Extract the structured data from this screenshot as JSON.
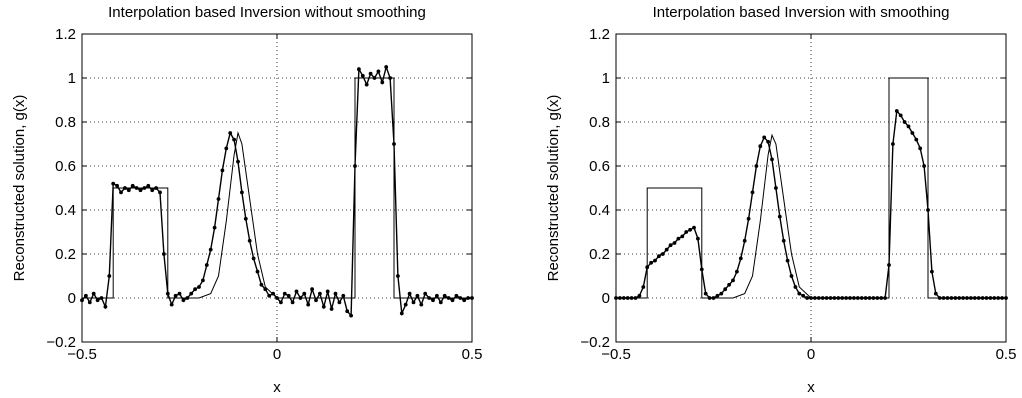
{
  "chart_data": [
    {
      "type": "line",
      "title": "Interpolation based Inversion without smoothing",
      "xlabel": "x",
      "ylabel": "Reconstructed solution, g(x)",
      "xlim": [
        -0.5,
        0.5
      ],
      "ylim": [
        -0.2,
        1.2
      ],
      "xticks": [
        "−0.5",
        "0",
        "0.5"
      ],
      "yticks": [
        "−0.2",
        "0",
        "0.2",
        "0.4",
        "0.6",
        "0.8",
        "1",
        "1.2"
      ],
      "xtick_values": [
        -0.5,
        0,
        0.5
      ],
      "ytick_values": [
        -0.2,
        0,
        0.2,
        0.4,
        0.6,
        0.8,
        1,
        1.2
      ],
      "grid": true,
      "exact": {
        "x": [
          -0.5,
          -0.42,
          -0.42,
          -0.28,
          -0.28,
          -0.2,
          -0.17,
          -0.15,
          -0.13,
          -0.11,
          -0.1,
          -0.09,
          -0.07,
          -0.05,
          -0.03,
          0.0,
          0.2,
          0.2,
          0.3,
          0.3,
          0.5
        ],
        "y": [
          0,
          0,
          0.5,
          0.5,
          0,
          0,
          0.02,
          0.1,
          0.35,
          0.65,
          0.75,
          0.7,
          0.45,
          0.2,
          0.05,
          0,
          0,
          1,
          1,
          0,
          0
        ]
      },
      "reconstruction": {
        "x": [
          -0.5,
          -0.49,
          -0.48,
          -0.47,
          -0.46,
          -0.45,
          -0.44,
          -0.43,
          -0.42,
          -0.41,
          -0.4,
          -0.39,
          -0.38,
          -0.37,
          -0.36,
          -0.35,
          -0.34,
          -0.33,
          -0.32,
          -0.31,
          -0.3,
          -0.29,
          -0.28,
          -0.27,
          -0.26,
          -0.25,
          -0.24,
          -0.23,
          -0.22,
          -0.21,
          -0.2,
          -0.19,
          -0.18,
          -0.17,
          -0.16,
          -0.15,
          -0.14,
          -0.13,
          -0.12,
          -0.11,
          -0.1,
          -0.09,
          -0.08,
          -0.07,
          -0.06,
          -0.05,
          -0.04,
          -0.03,
          -0.02,
          -0.01,
          0.0,
          0.01,
          0.02,
          0.03,
          0.04,
          0.05,
          0.06,
          0.07,
          0.08,
          0.09,
          0.1,
          0.11,
          0.12,
          0.13,
          0.14,
          0.15,
          0.16,
          0.17,
          0.18,
          0.19,
          0.2,
          0.21,
          0.22,
          0.23,
          0.24,
          0.25,
          0.26,
          0.27,
          0.28,
          0.29,
          0.3,
          0.31,
          0.32,
          0.33,
          0.34,
          0.35,
          0.36,
          0.37,
          0.38,
          0.39,
          0.4,
          0.41,
          0.42,
          0.43,
          0.44,
          0.45,
          0.46,
          0.47,
          0.48,
          0.49,
          0.5
        ],
        "y": [
          -0.01,
          0.01,
          -0.02,
          0.02,
          -0.01,
          0.0,
          -0.04,
          0.1,
          0.52,
          0.51,
          0.48,
          0.5,
          0.49,
          0.51,
          0.5,
          0.49,
          0.5,
          0.51,
          0.49,
          0.5,
          0.48,
          0.2,
          0.02,
          -0.03,
          0.01,
          0.02,
          -0.01,
          0.0,
          0.02,
          0.04,
          0.05,
          0.08,
          0.15,
          0.22,
          0.32,
          0.45,
          0.58,
          0.68,
          0.75,
          0.72,
          0.62,
          0.48,
          0.36,
          0.26,
          0.18,
          0.12,
          0.06,
          0.04,
          0.01,
          0.02,
          0.0,
          -0.02,
          0.02,
          0.01,
          -0.02,
          0.03,
          0.0,
          0.02,
          -0.03,
          0.04,
          -0.01,
          0.02,
          -0.04,
          0.03,
          -0.05,
          0.02,
          -0.02,
          0.01,
          -0.06,
          -0.08,
          0.6,
          1.04,
          1.01,
          0.97,
          1.02,
          1.0,
          1.03,
          0.98,
          1.05,
          1.0,
          0.7,
          0.1,
          -0.07,
          -0.03,
          0.02,
          -0.02,
          0.01,
          -0.03,
          0.02,
          0.0,
          -0.01,
          0.01,
          -0.02,
          0.01,
          0.0,
          -0.01,
          0.01,
          0.0,
          -0.01,
          0.0,
          0.0
        ]
      }
    },
    {
      "type": "line",
      "title": "Interpolation based Inversion with smoothing",
      "xlabel": "x",
      "ylabel": "Reconstructed solution, g(x)",
      "xlim": [
        -0.5,
        0.5
      ],
      "ylim": [
        -0.2,
        1.2
      ],
      "xticks": [
        "−0.5",
        "0",
        "0.5"
      ],
      "yticks": [
        "−0.2",
        "0",
        "0.2",
        "0.4",
        "0.6",
        "0.8",
        "1",
        "1.2"
      ],
      "xtick_values": [
        -0.5,
        0,
        0.5
      ],
      "ytick_values": [
        -0.2,
        0,
        0.2,
        0.4,
        0.6,
        0.8,
        1,
        1.2
      ],
      "grid": true,
      "exact": {
        "x": [
          -0.5,
          -0.42,
          -0.42,
          -0.28,
          -0.28,
          -0.2,
          -0.17,
          -0.15,
          -0.13,
          -0.11,
          -0.1,
          -0.09,
          -0.07,
          -0.05,
          -0.03,
          0.0,
          0.2,
          0.2,
          0.3,
          0.3,
          0.5
        ],
        "y": [
          0,
          0,
          0.5,
          0.5,
          0,
          0,
          0.02,
          0.1,
          0.35,
          0.65,
          0.74,
          0.7,
          0.45,
          0.2,
          0.05,
          0,
          0,
          1,
          1,
          0,
          0
        ]
      },
      "reconstruction": {
        "x": [
          -0.5,
          -0.49,
          -0.48,
          -0.47,
          -0.46,
          -0.45,
          -0.44,
          -0.43,
          -0.42,
          -0.41,
          -0.4,
          -0.39,
          -0.38,
          -0.37,
          -0.36,
          -0.35,
          -0.34,
          -0.33,
          -0.32,
          -0.31,
          -0.3,
          -0.29,
          -0.28,
          -0.27,
          -0.26,
          -0.25,
          -0.24,
          -0.23,
          -0.22,
          -0.21,
          -0.2,
          -0.19,
          -0.18,
          -0.17,
          -0.16,
          -0.15,
          -0.14,
          -0.13,
          -0.12,
          -0.11,
          -0.1,
          -0.09,
          -0.08,
          -0.07,
          -0.06,
          -0.05,
          -0.04,
          -0.03,
          -0.02,
          -0.01,
          0.0,
          0.01,
          0.02,
          0.03,
          0.04,
          0.05,
          0.06,
          0.07,
          0.08,
          0.09,
          0.1,
          0.11,
          0.12,
          0.13,
          0.14,
          0.15,
          0.16,
          0.17,
          0.18,
          0.19,
          0.2,
          0.21,
          0.22,
          0.23,
          0.24,
          0.25,
          0.26,
          0.27,
          0.28,
          0.29,
          0.3,
          0.31,
          0.32,
          0.33,
          0.34,
          0.35,
          0.36,
          0.37,
          0.38,
          0.39,
          0.4,
          0.41,
          0.42,
          0.43,
          0.44,
          0.45,
          0.46,
          0.47,
          0.48,
          0.49,
          0.5
        ],
        "y": [
          0.0,
          0.0,
          0.0,
          0.0,
          0.0,
          0.0,
          0.01,
          0.05,
          0.14,
          0.16,
          0.17,
          0.19,
          0.2,
          0.22,
          0.24,
          0.25,
          0.27,
          0.28,
          0.3,
          0.31,
          0.32,
          0.27,
          0.13,
          0.02,
          0.0,
          0.0,
          0.01,
          0.02,
          0.04,
          0.06,
          0.08,
          0.12,
          0.18,
          0.26,
          0.36,
          0.48,
          0.6,
          0.69,
          0.73,
          0.71,
          0.63,
          0.5,
          0.37,
          0.26,
          0.17,
          0.1,
          0.05,
          0.02,
          0.01,
          0.0,
          0.0,
          0.0,
          0.0,
          0.0,
          0.0,
          0.0,
          0.0,
          0.0,
          0.0,
          0.0,
          0.0,
          0.0,
          0.0,
          0.0,
          0.0,
          0.0,
          0.0,
          0.0,
          0.0,
          0.0,
          0.15,
          0.7,
          0.85,
          0.83,
          0.8,
          0.78,
          0.75,
          0.72,
          0.68,
          0.6,
          0.4,
          0.12,
          0.02,
          0.0,
          0.0,
          0.0,
          0.0,
          0.0,
          0.0,
          0.0,
          0.0,
          0.0,
          0.0,
          0.0,
          0.0,
          0.0,
          0.0,
          0.0,
          0.0,
          0.0,
          0.0
        ]
      }
    }
  ]
}
